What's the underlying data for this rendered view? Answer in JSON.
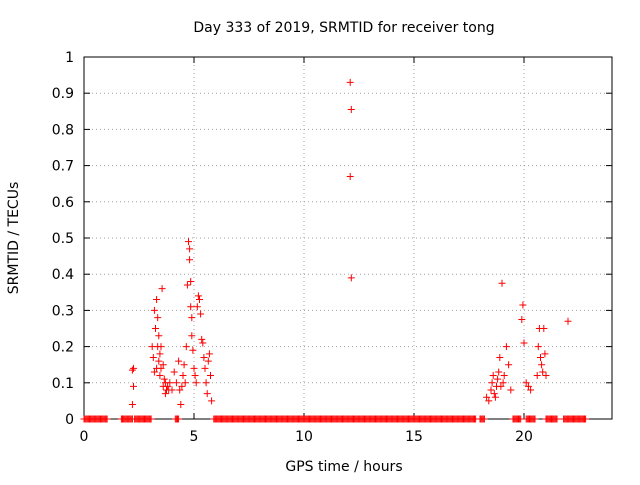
{
  "chart_data": {
    "type": "scatter",
    "title": "Day 333 of 2019, SRMTID for receiver tong",
    "xlabel": "GPS time / hours",
    "ylabel": "SRMTID / TECUs",
    "xlim": [
      0,
      24
    ],
    "ylim": [
      0,
      1
    ],
    "x_ticks": [
      0,
      5,
      10,
      15,
      20
    ],
    "x_tick_labels": [
      "0",
      "5",
      "10",
      "15",
      "20"
    ],
    "y_ticks": [
      0,
      0.1,
      0.2,
      0.3,
      0.4,
      0.5,
      0.6,
      0.7,
      0.8,
      0.9,
      1
    ],
    "y_tick_labels": [
      "0",
      "0.1",
      "0.2",
      "0.3",
      "0.4",
      "0.5",
      "0.6",
      "0.7",
      "0.8",
      "0.9",
      "1"
    ],
    "grid": true,
    "marker": "+",
    "color": "#ff0000",
    "series": [
      {
        "name": "SRMTID",
        "x": [
          2.2,
          2.25,
          2.2,
          2.25,
          3.1,
          3.15,
          3.2,
          3.2,
          3.25,
          3.3,
          3.3,
          3.35,
          3.35,
          3.4,
          3.4,
          3.45,
          3.45,
          3.5,
          3.5,
          3.55,
          3.6,
          3.6,
          3.65,
          3.7,
          3.7,
          3.75,
          3.8,
          3.85,
          3.9,
          4.0,
          4.1,
          4.2,
          4.3,
          4.35,
          4.4,
          4.45,
          4.5,
          4.55,
          4.6,
          4.65,
          4.7,
          4.75,
          4.8,
          4.8,
          4.85,
          4.85,
          4.9,
          4.9,
          4.95,
          5.0,
          5.05,
          5.1,
          5.15,
          5.2,
          5.25,
          5.3,
          5.35,
          5.4,
          5.45,
          5.5,
          5.55,
          5.6,
          5.65,
          5.7,
          5.75,
          5.8,
          12.1,
          12.15,
          12.1,
          12.15,
          18.3,
          18.4,
          18.5,
          18.55,
          18.6,
          18.65,
          18.7,
          18.75,
          18.8,
          18.85,
          18.9,
          18.95,
          19.0,
          19.05,
          19.1,
          19.2,
          19.3,
          19.4,
          19.9,
          19.95,
          20.0,
          20.1,
          20.2,
          20.3,
          20.6,
          20.65,
          20.7,
          20.75,
          20.8,
          20.85,
          20.9,
          20.95,
          21.0,
          22.0
        ],
        "y": [
          0.135,
          0.09,
          0.04,
          0.14,
          0.2,
          0.17,
          0.13,
          0.3,
          0.25,
          0.33,
          0.14,
          0.28,
          0.2,
          0.23,
          0.16,
          0.18,
          0.12,
          0.14,
          0.2,
          0.36,
          0.09,
          0.15,
          0.11,
          0.07,
          0.1,
          0.08,
          0.09,
          0.08,
          0.1,
          0.08,
          0.13,
          0.1,
          0.16,
          0.08,
          0.04,
          0.09,
          0.12,
          0.15,
          0.1,
          0.2,
          0.37,
          0.49,
          0.47,
          0.44,
          0.38,
          0.31,
          0.28,
          0.23,
          0.19,
          0.14,
          0.12,
          0.1,
          0.31,
          0.34,
          0.33,
          0.29,
          0.22,
          0.21,
          0.17,
          0.14,
          0.1,
          0.07,
          0.16,
          0.18,
          0.12,
          0.05,
          0.93,
          0.855,
          0.67,
          0.39,
          0.06,
          0.05,
          0.08,
          0.1,
          0.12,
          0.07,
          0.06,
          0.09,
          0.11,
          0.13,
          0.17,
          0.09,
          0.375,
          0.1,
          0.12,
          0.2,
          0.15,
          0.08,
          0.275,
          0.315,
          0.21,
          0.1,
          0.09,
          0.08,
          0.12,
          0.2,
          0.25,
          0.17,
          0.15,
          0.13,
          0.25,
          0.18,
          0.12,
          0.27
        ]
      }
    ],
    "zero_band": [
      [
        0,
        1.05
      ],
      [
        1.7,
        2.2
      ],
      [
        2.3,
        3.05
      ],
      [
        4.15,
        4.3
      ],
      [
        5.9,
        17.8
      ],
      [
        18.0,
        18.2
      ],
      [
        19.5,
        19.85
      ],
      [
        20.1,
        20.5
      ],
      [
        21.0,
        21.5
      ],
      [
        21.8,
        22.8
      ]
    ]
  }
}
